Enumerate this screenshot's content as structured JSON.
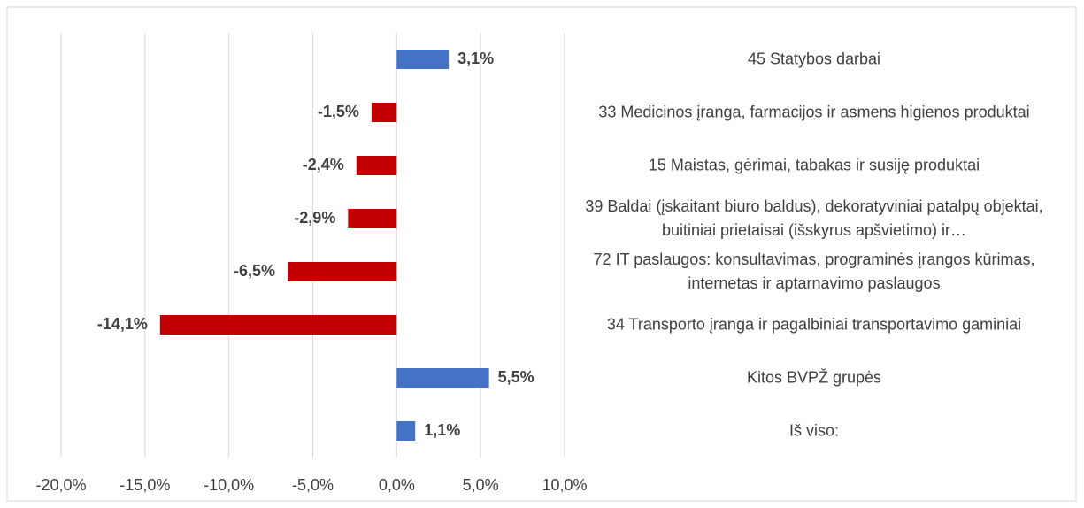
{
  "chart_data": {
    "type": "barh",
    "categories": [
      "45 Statybos darbai",
      "33 Medicinos įranga, farmacijos ir asmens higienos produktai",
      "15 Maistas, gėrimai, tabakas ir susiję produktai",
      "39 Baldai (įskaitant biuro baldus), dekoratyviniai patalpų objektai, buitiniai prietaisai (išskyrus apšvietimo) ir…",
      "72 IT paslaugos: konsultavimas, programinės įrangos kūrimas, internetas ir aptarnavimo paslaugos",
      "34 Transporto įranga ir pagalbiniai transportavimo gaminiai",
      "Kitos BVPŽ grupės",
      "Iš viso:"
    ],
    "values": [
      3.1,
      -1.5,
      -2.4,
      -2.9,
      -6.5,
      -14.1,
      5.5,
      1.1
    ],
    "value_labels": [
      "3,1%",
      "-1,5%",
      "-2,4%",
      "-2,9%",
      "-6,5%",
      "-14,1%",
      "5,5%",
      "1,1%"
    ],
    "colors": [
      "#4472c4",
      "#c00000",
      "#c00000",
      "#c00000",
      "#c00000",
      "#c00000",
      "#4472c4",
      "#4472c4"
    ],
    "xlim": [
      -20,
      10
    ],
    "xticks": [
      {
        "value": -20,
        "label": "-20,0%"
      },
      {
        "value": -15,
        "label": "-15,0%"
      },
      {
        "value": -10,
        "label": "-10,0%"
      },
      {
        "value": -5,
        "label": "-5,0%"
      },
      {
        "value": 0,
        "label": "0,0%"
      },
      {
        "value": 5,
        "label": "5,0%"
      },
      {
        "value": 10,
        "label": "10,0%"
      }
    ],
    "grid": true
  }
}
